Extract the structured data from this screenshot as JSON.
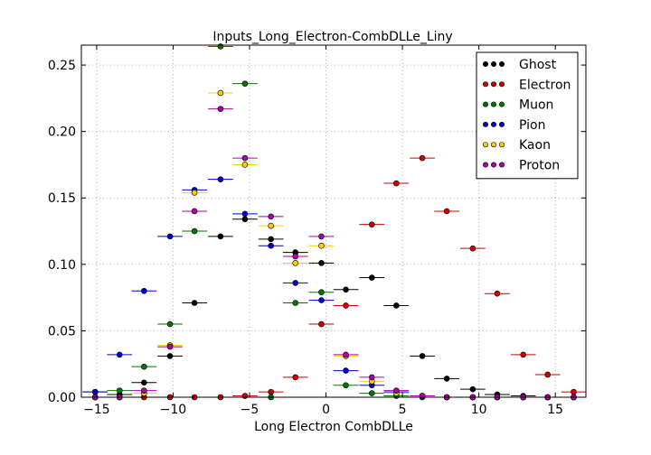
{
  "chart_data": {
    "type": "scatter",
    "title": "Inputs_Long_Electron-CombDLLe_Liny",
    "xlabel": "Long Electron CombDLLe",
    "ylabel": "",
    "xlim": [
      -16,
      17
    ],
    "ylim": [
      0,
      0.265
    ],
    "xticks": [
      -15,
      -10,
      -5,
      0,
      5,
      10,
      15
    ],
    "yticks": [
      0.0,
      0.05,
      0.1,
      0.15,
      0.2,
      0.25
    ],
    "ytick_labels": [
      "0.00",
      "0.05",
      "0.10",
      "0.15",
      "0.20",
      "0.25"
    ],
    "grid": true,
    "legend_position": "top-right",
    "x": [
      -15.1,
      -13.5,
      -11.9,
      -10.2,
      -8.6,
      -6.9,
      -5.3,
      -3.6,
      -2.0,
      -0.3,
      1.3,
      3.0,
      4.6,
      6.3,
      7.9,
      9.6,
      11.2,
      12.9,
      14.5,
      16.2
    ],
    "xerr": 0.82,
    "series": [
      {
        "name": "Ghost",
        "color": "#000000",
        "values": [
          0.0,
          0.002,
          0.011,
          0.031,
          0.071,
          0.121,
          0.134,
          0.119,
          0.109,
          0.101,
          0.081,
          0.09,
          0.069,
          0.031,
          0.014,
          0.006,
          0.002,
          0.001,
          0.0,
          0.0
        ]
      },
      {
        "name": "Electron",
        "color": "#cc0000",
        "values": [
          0.0,
          0.0,
          0.0,
          0.0,
          0.0,
          0.0,
          0.001,
          0.004,
          0.015,
          0.055,
          0.069,
          0.13,
          0.161,
          0.18,
          0.14,
          0.112,
          0.078,
          0.032,
          0.017,
          0.004
        ]
      },
      {
        "name": "Muon",
        "color": "#007700",
        "values": [
          0.004,
          0.005,
          0.023,
          0.055,
          0.125,
          0.264,
          0.236,
          0.0,
          0.071,
          0.079,
          0.009,
          0.003,
          0.001,
          0.0,
          0.0,
          0.0,
          0.0,
          0.0,
          0.0,
          0.0
        ]
      },
      {
        "name": "Pion",
        "color": "#0000cc",
        "values": [
          0.004,
          0.032,
          0.08,
          0.121,
          0.156,
          0.164,
          0.138,
          0.114,
          0.086,
          0.073,
          0.02,
          0.009,
          0.004,
          0.001,
          0.0,
          0.0,
          0.0,
          0.0,
          0.0,
          0.0
        ]
      },
      {
        "name": "Kaon",
        "color": "#ffcc00",
        "values": [
          0.0,
          0.0,
          0.003,
          0.039,
          0.154,
          0.229,
          0.175,
          0.129,
          0.101,
          0.114,
          0.031,
          0.012,
          0.003,
          0.001,
          0.0,
          0.0,
          0.0,
          0.0,
          0.0,
          0.0
        ]
      },
      {
        "name": "Proton",
        "color": "#aa00aa",
        "values": [
          0.0,
          0.0,
          0.005,
          0.038,
          0.14,
          0.217,
          0.18,
          0.136,
          0.106,
          0.121,
          0.032,
          0.015,
          0.005,
          0.001,
          0.0,
          0.0,
          0.0,
          0.0,
          0.0,
          0.0
        ]
      }
    ]
  }
}
